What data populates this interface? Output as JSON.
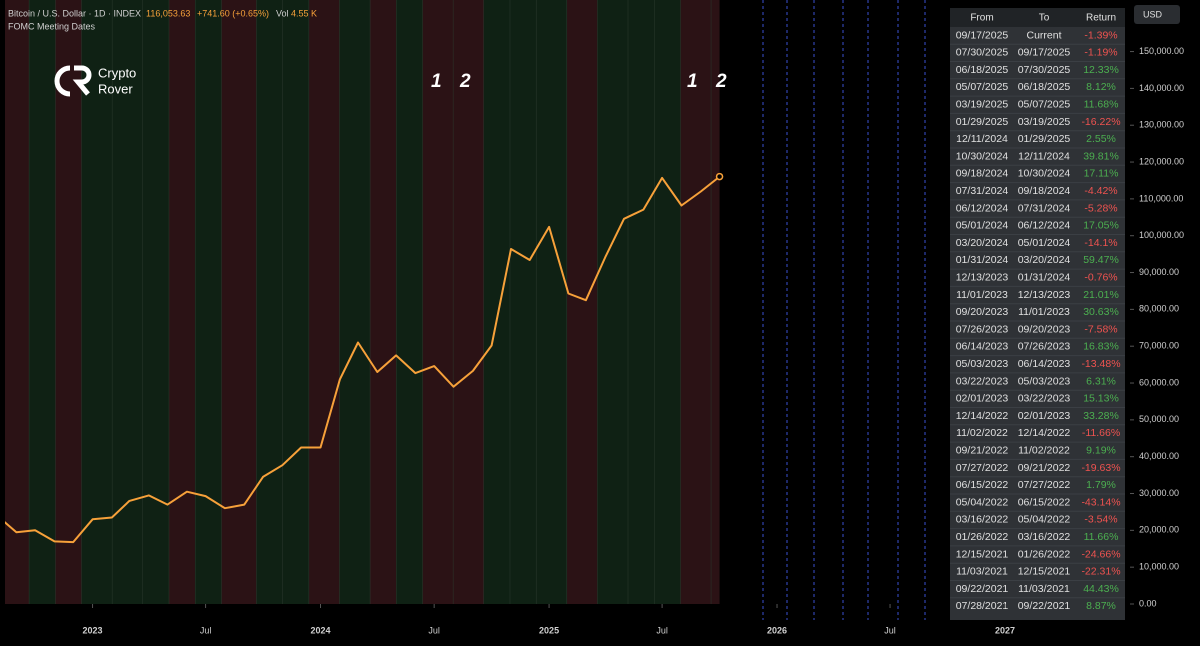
{
  "header": {
    "symbol": "Bitcoin / U.S. Dollar · 1D · INDEX",
    "last_price": "116,053.63",
    "change": "+741.60 (+0.65%)",
    "volume_label": "Vol",
    "volume": "4.55 K",
    "indicator": "FOMC Meeting Dates"
  },
  "brand": [
    "Crypto",
    "Rover"
  ],
  "currency_button": "USD",
  "annotations": [
    "1",
    "2",
    "1",
    "2"
  ],
  "chart_data": {
    "type": "line",
    "x": [
      "2022-08",
      "2022-09",
      "2022-10",
      "2022-11",
      "2022-12",
      "2023-01",
      "2023-02",
      "2023-03",
      "2023-04",
      "2023-05",
      "2023-06",
      "2023-07",
      "2023-08",
      "2023-09",
      "2023-10",
      "2023-11",
      "2023-12",
      "2024-01",
      "2024-02",
      "2024-03",
      "2024-04",
      "2024-05",
      "2024-06",
      "2024-07",
      "2024-08",
      "2024-09",
      "2024-10",
      "2024-11",
      "2024-12",
      "2025-01",
      "2025-02",
      "2025-03",
      "2025-04",
      "2025-05",
      "2025-06",
      "2025-07",
      "2025-08",
      "2025-09",
      "2025-10"
    ],
    "series": [
      {
        "name": "BTCUSD",
        "color": "#f7a13a",
        "values": [
          24000,
          19500,
          20000,
          17000,
          16800,
          23000,
          23500,
          28000,
          29500,
          27000,
          30500,
          29300,
          26000,
          27000,
          34500,
          37700,
          42500,
          42500,
          61000,
          71000,
          63000,
          67500,
          62700,
          64600,
          59000,
          63300,
          70200,
          96400,
          93400,
          102400,
          84300,
          82500,
          94200,
          104600,
          107100,
          115700,
          108200,
          112000,
          116053
        ]
      }
    ],
    "xlim": [
      "2022-08",
      "2027-07"
    ],
    "xticks": [
      {
        "value": "2023-01",
        "label": "2023"
      },
      {
        "value": "2023-07",
        "label": "Jul"
      },
      {
        "value": "2024-01",
        "label": "2024"
      },
      {
        "value": "2024-07",
        "label": "Jul"
      },
      {
        "value": "2025-01",
        "label": "2025"
      },
      {
        "value": "2025-07",
        "label": "Jul"
      },
      {
        "value": "2026-01",
        "label": "2026"
      },
      {
        "value": "2026-07",
        "label": "Jul"
      },
      {
        "value": "2027-01",
        "label": "2027"
      }
    ],
    "ylim": [
      0,
      164000
    ],
    "yticks": [
      {
        "value": 0,
        "label": "0.00"
      },
      {
        "value": 10000,
        "label": "10,000.00"
      },
      {
        "value": 20000,
        "label": "20,000.00"
      },
      {
        "value": 30000,
        "label": "30,000.00"
      },
      {
        "value": 40000,
        "label": "40,000.00"
      },
      {
        "value": 50000,
        "label": "50,000.00"
      },
      {
        "value": 60000,
        "label": "60,000.00"
      },
      {
        "value": 70000,
        "label": "70,000.00"
      },
      {
        "value": 80000,
        "label": "80,000.00"
      },
      {
        "value": 90000,
        "label": "90,000.00"
      },
      {
        "value": 100000,
        "label": "100,000.00"
      },
      {
        "value": 110000,
        "label": "110,000.00"
      },
      {
        "value": 120000,
        "label": "120,000.00"
      },
      {
        "value": 130000,
        "label": "130,000.00"
      },
      {
        "value": 140000,
        "label": "140,000.00"
      },
      {
        "value": 150000,
        "label": "150,000.00"
      }
    ]
  },
  "table": {
    "columns": [
      "From",
      "To",
      "Return"
    ],
    "rows": [
      [
        "09/17/2025",
        "Current",
        "-1.39%"
      ],
      [
        "07/30/2025",
        "09/17/2025",
        "-1.19%"
      ],
      [
        "06/18/2025",
        "07/30/2025",
        "12.33%"
      ],
      [
        "05/07/2025",
        "06/18/2025",
        "8.12%"
      ],
      [
        "03/19/2025",
        "05/07/2025",
        "11.68%"
      ],
      [
        "01/29/2025",
        "03/19/2025",
        "-16.22%"
      ],
      [
        "12/11/2024",
        "01/29/2025",
        "2.55%"
      ],
      [
        "10/30/2024",
        "12/11/2024",
        "39.81%"
      ],
      [
        "09/18/2024",
        "10/30/2024",
        "17.11%"
      ],
      [
        "07/31/2024",
        "09/18/2024",
        "-4.42%"
      ],
      [
        "06/12/2024",
        "07/31/2024",
        "-5.28%"
      ],
      [
        "05/01/2024",
        "06/12/2024",
        "17.05%"
      ],
      [
        "03/20/2024",
        "05/01/2024",
        "-14.1%"
      ],
      [
        "01/31/2024",
        "03/20/2024",
        "59.47%"
      ],
      [
        "12/13/2023",
        "01/31/2024",
        "-0.76%"
      ],
      [
        "11/01/2023",
        "12/13/2023",
        "21.01%"
      ],
      [
        "09/20/2023",
        "11/01/2023",
        "30.63%"
      ],
      [
        "07/26/2023",
        "09/20/2023",
        "-7.58%"
      ],
      [
        "06/14/2023",
        "07/26/2023",
        "16.83%"
      ],
      [
        "05/03/2023",
        "06/14/2023",
        "-13.48%"
      ],
      [
        "03/22/2023",
        "05/03/2023",
        "6.31%"
      ],
      [
        "02/01/2023",
        "03/22/2023",
        "15.13%"
      ],
      [
        "12/14/2022",
        "02/01/2023",
        "33.28%"
      ],
      [
        "11/02/2022",
        "12/14/2022",
        "-11.66%"
      ],
      [
        "09/21/2022",
        "11/02/2022",
        "9.19%"
      ],
      [
        "07/27/2022",
        "09/21/2022",
        "-19.63%"
      ],
      [
        "06/15/2022",
        "07/27/2022",
        "1.79%"
      ],
      [
        "05/04/2022",
        "06/15/2022",
        "-43.14%"
      ],
      [
        "03/16/2022",
        "05/04/2022",
        "-3.54%"
      ],
      [
        "01/26/2022",
        "03/16/2022",
        "11.66%"
      ],
      [
        "12/15/2021",
        "01/26/2022",
        "-24.66%"
      ],
      [
        "11/03/2021",
        "12/15/2021",
        "-22.31%"
      ],
      [
        "09/22/2021",
        "11/03/2021",
        "44.43%"
      ],
      [
        "07/28/2021",
        "09/22/2021",
        "8.87%"
      ]
    ]
  }
}
